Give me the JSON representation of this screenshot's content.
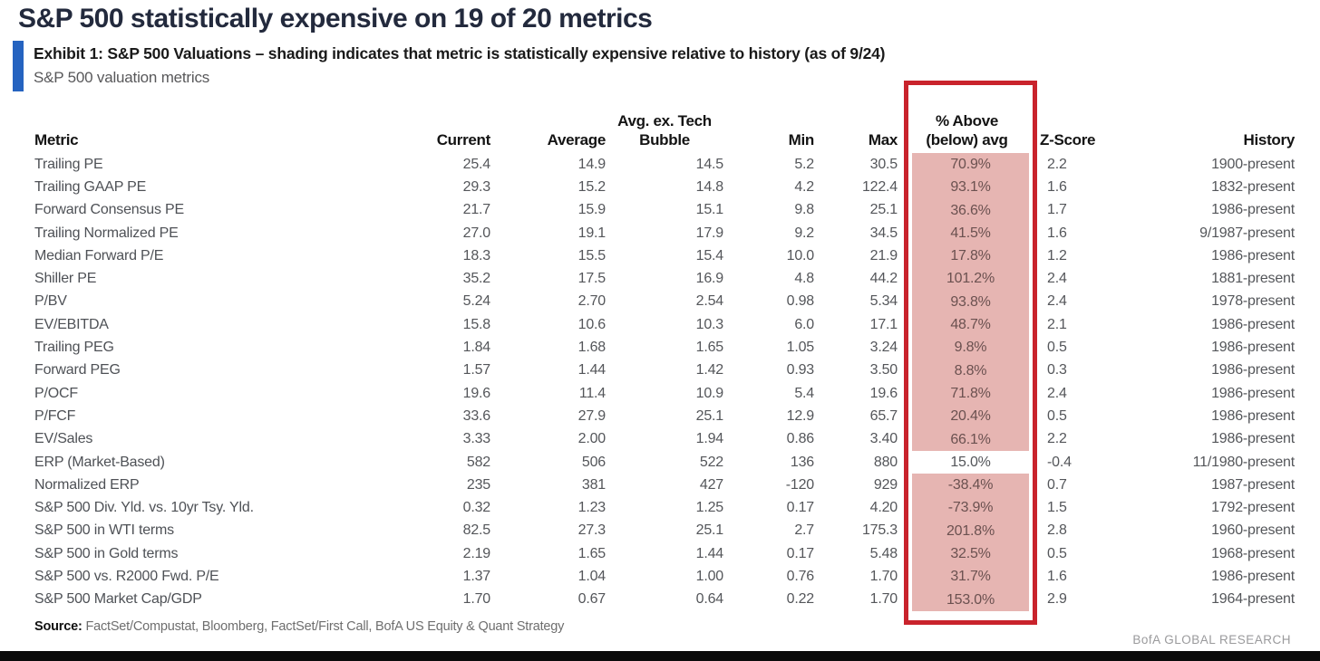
{
  "title": "S&P 500 statistically expensive on 19 of 20 metrics",
  "exhibit": {
    "title": "Exhibit 1: S&P 500 Valuations – shading indicates that metric is statistically expensive relative to history (as of 9/24)",
    "subtitle": "S&P 500 valuation metrics"
  },
  "table": {
    "headers": {
      "metric": "Metric",
      "current": "Current",
      "average": "Average",
      "avg_ex_tech_line1": "Avg. ex. Tech",
      "avg_ex_tech_line2": "Bubble",
      "min": "Min",
      "max": "Max",
      "pct_line1": "% Above",
      "pct_line2": "(below) avg",
      "z_score": "Z-Score",
      "history": "History"
    },
    "rows": [
      {
        "metric": "Trailing PE",
        "current": "25.4",
        "average": "14.9",
        "avg_ex_tech_bubble": "14.5",
        "min": "5.2",
        "max": "30.5",
        "pct_above_avg": "70.9%",
        "expensive": true,
        "z_score": "2.2",
        "history": "1900-present"
      },
      {
        "metric": "Trailing GAAP PE",
        "current": "29.3",
        "average": "15.2",
        "avg_ex_tech_bubble": "14.8",
        "min": "4.2",
        "max": "122.4",
        "pct_above_avg": "93.1%",
        "expensive": true,
        "z_score": "1.6",
        "history": "1832-present"
      },
      {
        "metric": "Forward Consensus PE",
        "current": "21.7",
        "average": "15.9",
        "avg_ex_tech_bubble": "15.1",
        "min": "9.8",
        "max": "25.1",
        "pct_above_avg": "36.6%",
        "expensive": true,
        "z_score": "1.7",
        "history": "1986-present"
      },
      {
        "metric": "Trailing Normalized PE",
        "current": "27.0",
        "average": "19.1",
        "avg_ex_tech_bubble": "17.9",
        "min": "9.2",
        "max": "34.5",
        "pct_above_avg": "41.5%",
        "expensive": true,
        "z_score": "1.6",
        "history": "9/1987-present"
      },
      {
        "metric": "Median Forward P/E",
        "current": "18.3",
        "average": "15.5",
        "avg_ex_tech_bubble": "15.4",
        "min": "10.0",
        "max": "21.9",
        "pct_above_avg": "17.8%",
        "expensive": true,
        "z_score": "1.2",
        "history": "1986-present"
      },
      {
        "metric": "Shiller PE",
        "current": "35.2",
        "average": "17.5",
        "avg_ex_tech_bubble": "16.9",
        "min": "4.8",
        "max": "44.2",
        "pct_above_avg": "101.2%",
        "expensive": true,
        "z_score": "2.4",
        "history": "1881-present"
      },
      {
        "metric": "P/BV",
        "current": "5.24",
        "average": "2.70",
        "avg_ex_tech_bubble": "2.54",
        "min": "0.98",
        "max": "5.34",
        "pct_above_avg": "93.8%",
        "expensive": true,
        "z_score": "2.4",
        "history": "1978-present"
      },
      {
        "metric": "EV/EBITDA",
        "current": "15.8",
        "average": "10.6",
        "avg_ex_tech_bubble": "10.3",
        "min": "6.0",
        "max": "17.1",
        "pct_above_avg": "48.7%",
        "expensive": true,
        "z_score": "2.1",
        "history": "1986-present"
      },
      {
        "metric": "Trailing PEG",
        "current": "1.84",
        "average": "1.68",
        "avg_ex_tech_bubble": "1.65",
        "min": "1.05",
        "max": "3.24",
        "pct_above_avg": "9.8%",
        "expensive": true,
        "z_score": "0.5",
        "history": "1986-present"
      },
      {
        "metric": "Forward PEG",
        "current": "1.57",
        "average": "1.44",
        "avg_ex_tech_bubble": "1.42",
        "min": "0.93",
        "max": "3.50",
        "pct_above_avg": "8.8%",
        "expensive": true,
        "z_score": "0.3",
        "history": "1986-present"
      },
      {
        "metric": "P/OCF",
        "current": "19.6",
        "average": "11.4",
        "avg_ex_tech_bubble": "10.9",
        "min": "5.4",
        "max": "19.6",
        "pct_above_avg": "71.8%",
        "expensive": true,
        "z_score": "2.4",
        "history": "1986-present"
      },
      {
        "metric": "P/FCF",
        "current": "33.6",
        "average": "27.9",
        "avg_ex_tech_bubble": "25.1",
        "min": "12.9",
        "max": "65.7",
        "pct_above_avg": "20.4%",
        "expensive": true,
        "z_score": "0.5",
        "history": "1986-present"
      },
      {
        "metric": "EV/Sales",
        "current": "3.33",
        "average": "2.00",
        "avg_ex_tech_bubble": "1.94",
        "min": "0.86",
        "max": "3.40",
        "pct_above_avg": "66.1%",
        "expensive": true,
        "z_score": "2.2",
        "history": "1986-present"
      },
      {
        "metric": "ERP (Market-Based)",
        "current": "582",
        "average": "506",
        "avg_ex_tech_bubble": "522",
        "min": "136",
        "max": "880",
        "pct_above_avg": "15.0%",
        "expensive": false,
        "z_score": "-0.4",
        "history": "11/1980-present"
      },
      {
        "metric": "Normalized ERP",
        "current": "235",
        "average": "381",
        "avg_ex_tech_bubble": "427",
        "min": "-120",
        "max": "929",
        "pct_above_avg": "-38.4%",
        "expensive": true,
        "z_score": "0.7",
        "history": "1987-present"
      },
      {
        "metric": "S&P 500 Div. Yld. vs. 10yr Tsy. Yld.",
        "current": "0.32",
        "average": "1.23",
        "avg_ex_tech_bubble": "1.25",
        "min": "0.17",
        "max": "4.20",
        "pct_above_avg": "-73.9%",
        "expensive": true,
        "z_score": "1.5",
        "history": "1792-present"
      },
      {
        "metric": "S&P 500 in WTI terms",
        "current": "82.5",
        "average": "27.3",
        "avg_ex_tech_bubble": "25.1",
        "min": "2.7",
        "max": "175.3",
        "pct_above_avg": "201.8%",
        "expensive": true,
        "z_score": "2.8",
        "history": "1960-present"
      },
      {
        "metric": "S&P 500 in Gold terms",
        "current": "2.19",
        "average": "1.65",
        "avg_ex_tech_bubble": "1.44",
        "min": "0.17",
        "max": "5.48",
        "pct_above_avg": "32.5%",
        "expensive": true,
        "z_score": "0.5",
        "history": "1968-present"
      },
      {
        "metric": "S&P 500 vs. R2000 Fwd. P/E",
        "current": "1.37",
        "average": "1.04",
        "avg_ex_tech_bubble": "1.00",
        "min": "0.76",
        "max": "1.70",
        "pct_above_avg": "31.7%",
        "expensive": true,
        "z_score": "1.6",
        "history": "1986-present"
      },
      {
        "metric": "S&P 500 Market Cap/GDP",
        "current": "1.70",
        "average": "0.67",
        "avg_ex_tech_bubble": "0.64",
        "min": "0.22",
        "max": "1.70",
        "pct_above_avg": "153.0%",
        "expensive": true,
        "z_score": "2.9",
        "history": "1964-present"
      }
    ]
  },
  "source": {
    "label": "Source:",
    "text": "FactSet/Compustat, Bloomberg, FactSet/First Call, BofA US Equity & Quant Strategy"
  },
  "footer": {
    "brand": "BofA GLOBAL RESEARCH"
  },
  "colors": {
    "accent_blue": "#2563c0",
    "highlight_border": "#c9232c",
    "highlight_fill": "#e6b5b2"
  }
}
